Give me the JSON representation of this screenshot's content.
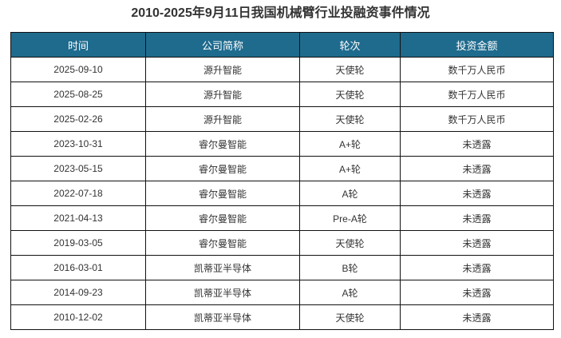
{
  "title": "2010-2025年9月11日我国机械臂行业投融资事件情况",
  "colors": {
    "header_bg": "#1f6b8e"
  },
  "table": {
    "headers": [
      "时间",
      "公司简称",
      "轮次",
      "投资金额"
    ],
    "rows": [
      [
        "2025-09-10",
        "源升智能",
        "天使轮",
        "数千万人民币"
      ],
      [
        "2025-08-25",
        "源升智能",
        "天使轮",
        "数千万人民币"
      ],
      [
        "2025-02-26",
        "源升智能",
        "天使轮",
        "数千万人民币"
      ],
      [
        "2023-10-31",
        "睿尔曼智能",
        "A+轮",
        "未透露"
      ],
      [
        "2023-05-15",
        "睿尔曼智能",
        "A+轮",
        "未透露"
      ],
      [
        "2022-07-18",
        "睿尔曼智能",
        "A轮",
        "未透露"
      ],
      [
        "2021-04-13",
        "睿尔曼智能",
        "Pre-A轮",
        "未透露"
      ],
      [
        "2019-03-05",
        "睿尔曼智能",
        "天使轮",
        "未透露"
      ],
      [
        "2016-03-01",
        "凯蒂亚半导体",
        "B轮",
        "未透露"
      ],
      [
        "2014-09-23",
        "凯蒂亚半导体",
        "A轮",
        "未透露"
      ],
      [
        "2010-12-02",
        "凯蒂亚半导体",
        "天使轮",
        "未透露"
      ]
    ]
  }
}
